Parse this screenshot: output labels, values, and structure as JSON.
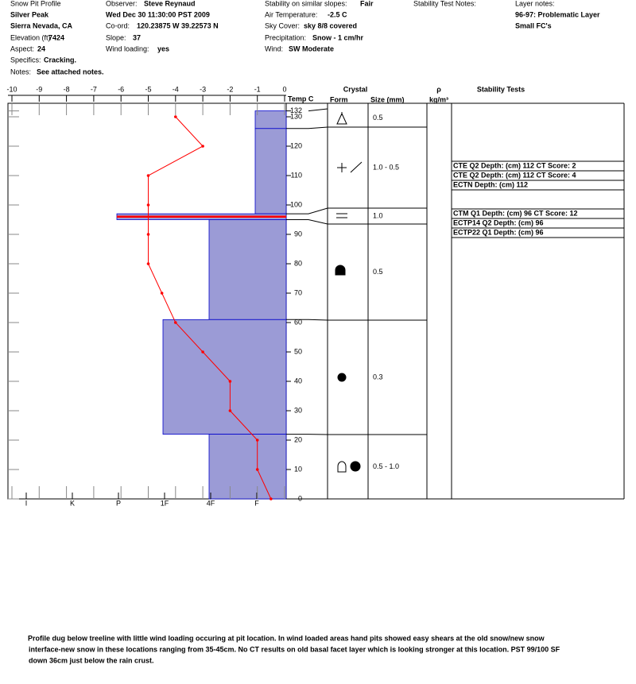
{
  "header": {
    "title": "Snow Pit Profile",
    "location": "Silver Peak",
    "region": "Sierra Nevada, CA",
    "elevation_label": "Elevation (ft)",
    "elevation": 7424,
    "aspect_label": "Aspect:",
    "aspect": 24,
    "specifics_label": "Specifics:",
    "specifics": "Cracking.",
    "notes_label": "Notes:",
    "notes": "See attached notes.",
    "observer_label": "Observer:",
    "observer": "Steve Reynaud",
    "datetime": "Wed Dec 30 11:30:00 PST 2009",
    "coord_label": "Co-ord:",
    "coord": "120.23875 W 39.22573 N",
    "slope_label": "Slope:",
    "slope": 37,
    "wind_loading_label": "Wind loading:",
    "wind_loading": "yes",
    "stability_label": "Stability on similar slopes:",
    "stability": "Fair",
    "air_temp_label": "Air Temperature:",
    "air_temp": "-2.5 C",
    "sky_label": "Sky Cover:",
    "sky": "sky 8/8 covered",
    "precip_label": "Precipitation:",
    "precip": "Snow - 1 cm/hr",
    "wind_label": "Wind:",
    "wind": "SW Moderate",
    "test_notes_label": "Stability Test Notes:",
    "layer_notes_label": "Layer notes:",
    "layer_notes": [
      "96-97: Problematic Layer",
      "Small FC's"
    ]
  },
  "chart_data": {
    "type": "snow-profile",
    "temp_label": "Temp C",
    "xlim": [
      -10,
      0
    ],
    "xticks": [
      -10,
      -9,
      -8,
      -7,
      -6,
      -5,
      -4,
      -3,
      -2,
      -1,
      0
    ],
    "ylim": [
      0,
      132
    ],
    "yticks": [
      0,
      10,
      20,
      30,
      40,
      50,
      60,
      70,
      80,
      90,
      100,
      110,
      120,
      130,
      132
    ],
    "temperature": {
      "color": "#ff0000",
      "depths": [
        130,
        120,
        110,
        100,
        90,
        80,
        70,
        60,
        50,
        40,
        30,
        20,
        10,
        0
      ],
      "values": [
        -4,
        -3,
        -5,
        -5,
        -5,
        -5,
        -4.5,
        -4,
        -3,
        -2,
        -2,
        -1,
        -1,
        -0.5
      ]
    },
    "hardness_categories": [
      "I",
      "K",
      "P",
      "1F",
      "4F",
      "F"
    ],
    "layer_color": "#9b9bd6",
    "layers": [
      {
        "top": 132,
        "bottom": 126,
        "hardness": "F",
        "size": "0.5"
      },
      {
        "top": 126,
        "bottom": 97,
        "hardness": "F",
        "size": "1.0 -  0.5"
      },
      {
        "top": 97,
        "bottom": 95,
        "hardness": "P",
        "size": "1.0"
      },
      {
        "top": 95,
        "bottom": 61,
        "hardness": "4F",
        "size": "0.5"
      },
      {
        "top": 61,
        "bottom": 22,
        "hardness": "1F",
        "size": "0.3"
      },
      {
        "top": 22,
        "bottom": 0,
        "hardness": "4F",
        "size": "0.5 -  1.0"
      }
    ],
    "shear_depth": 96,
    "shear_color": "#ff0000",
    "columns": {
      "crystal": "Crystal",
      "form": "Form",
      "size": "Size (mm)",
      "density": "ρ",
      "density_unit": "kg/m³",
      "tests": "Stability Tests"
    },
    "stability_tests": [
      "CTE Q2 Depth: (cm) 112 CT Score: 2",
      "CTE Q2 Depth: (cm) 112 CT Score: 4",
      "ECTN  Depth: (cm) 112",
      "CTM Q1 Depth: (cm) 96 CT Score: 12",
      "ECTP14 Q2 Depth: (cm) 96",
      "ECTP22 Q1 Depth: (cm) 96"
    ]
  },
  "footer": [
    "Profile dug below treeline with little wind loading occuring at pit location.  In wind loaded areas hand pits showed easy shears at the old snow/new snow",
    "interface-new snow in these locations ranging from 35-45cm.  No CT results on old basal facet layer which is looking stronger at this location.  PST 99/100 SF",
    "down 36cm just below the rain crust."
  ]
}
